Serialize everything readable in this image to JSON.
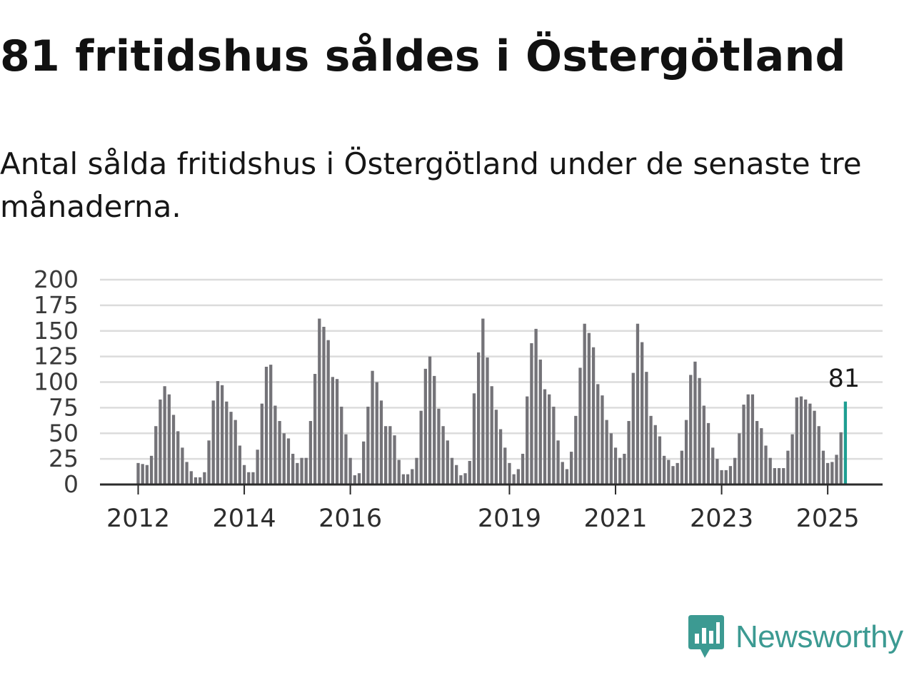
{
  "title": "81 fritidshus såldes i Östergötland",
  "subtitle": "Antal sålda fritidshus i Östergötland under de senaste tre månaderna.",
  "brand": {
    "name": "Newsworthy",
    "color": "#3c9a92"
  },
  "colors": {
    "bar": "#747378",
    "highlight": "#1e9e92"
  },
  "chart_data": {
    "type": "bar",
    "title": "",
    "xlabel": "",
    "ylabel": "",
    "ylim": [
      0,
      200
    ],
    "yticks": [
      0,
      25,
      50,
      75,
      100,
      125,
      150,
      175,
      200
    ],
    "xticks": [
      "2012",
      "2014",
      "2016",
      "2019",
      "2021",
      "2023",
      "2025"
    ],
    "grid": true,
    "annotation": "81",
    "series": [
      {
        "values": [
          21,
          20,
          19,
          28,
          57,
          83,
          96,
          88,
          68,
          52,
          36,
          22,
          13,
          7,
          7,
          12,
          43,
          82,
          101,
          97,
          81,
          71,
          63,
          38,
          19,
          12,
          12,
          34,
          79,
          115,
          117,
          77,
          62,
          50,
          45,
          30,
          21,
          26,
          26,
          62,
          108,
          162,
          154,
          141,
          105,
          103,
          76,
          49,
          26,
          9,
          11,
          42,
          76,
          111,
          100,
          82,
          57,
          57,
          48,
          24,
          10,
          10,
          15,
          26,
          72,
          113,
          125,
          106,
          74,
          57,
          43,
          26,
          19,
          9,
          11,
          23,
          89,
          129,
          162,
          124,
          96,
          73,
          54,
          36,
          21,
          10,
          15,
          30,
          86,
          138,
          152,
          122,
          93,
          88,
          76,
          43,
          22,
          15,
          32,
          67,
          114,
          157,
          148,
          134,
          98,
          87,
          63,
          50,
          36,
          26,
          30,
          62,
          109,
          157,
          139,
          110,
          67,
          58,
          47,
          28,
          24,
          18,
          21,
          33,
          63,
          107,
          120,
          104,
          77,
          60,
          36,
          25,
          14,
          14,
          18,
          26,
          50,
          78,
          88,
          88,
          62,
          55,
          38,
          26,
          16,
          16,
          16,
          33,
          49,
          85,
          86,
          83,
          79,
          72,
          57,
          33,
          21,
          22,
          29,
          51,
          81
        ]
      }
    ]
  }
}
